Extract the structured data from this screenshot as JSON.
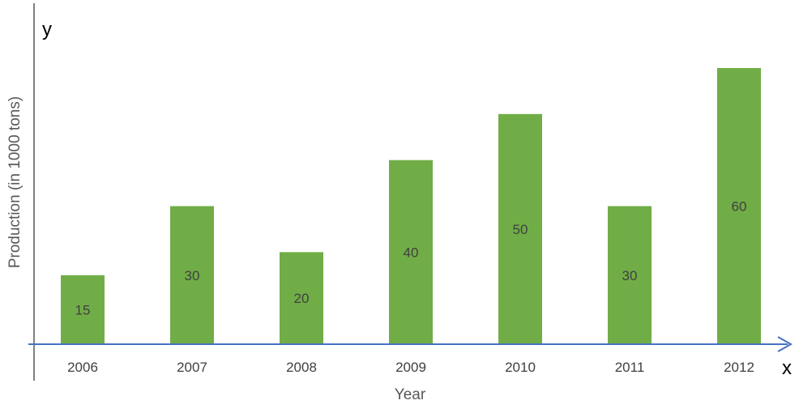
{
  "chart_data": {
    "type": "bar",
    "categories": [
      "2006",
      "2007",
      "2008",
      "2009",
      "2010",
      "2011",
      "2012"
    ],
    "values": [
      15,
      30,
      20,
      40,
      50,
      30,
      60
    ],
    "value_labels": [
      "15",
      "30",
      "20",
      "40",
      "50",
      "30",
      "60"
    ],
    "xlabel": "Year",
    "ylabel": "Production (in 1000 tons)",
    "x_axis_letter": "x",
    "y_axis_letter": "y",
    "ylim": [
      0,
      60
    ],
    "grid": false,
    "legend": "none",
    "colors": {
      "bar": "#70ad47",
      "x_axis": "#4472c4",
      "y_axis": "#000000"
    }
  }
}
